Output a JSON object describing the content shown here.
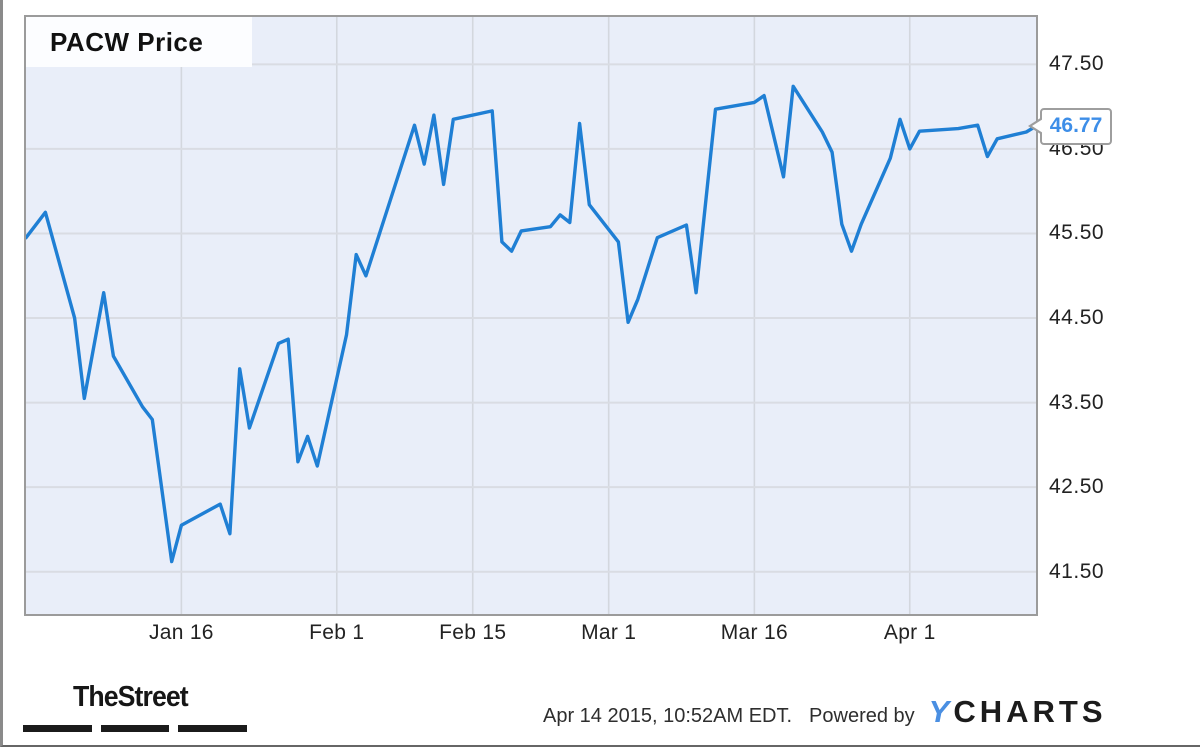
{
  "chart": {
    "title": "PACW Price",
    "last_price_label": "46.77"
  },
  "footer": {
    "brand": "TheStreet",
    "timestamp": "Apr 14 2015, 10:52AM EDT.",
    "powered_by": "Powered by",
    "ycharts_y": "Y",
    "ycharts_rest": "CHARTS"
  },
  "colors": {
    "line": "#1f7fd4",
    "plot_bg": "#e9eef9",
    "gridline_h": "#d9dce3",
    "gridline_v": "#d3d7de",
    "frame": "#9b9b9b",
    "callout_text": "#3d8ee8",
    "ycharts_blue": "#4a8fe2",
    "text": "#1f1f1f"
  },
  "chart_data": {
    "type": "line",
    "title": "PACW Price",
    "series_name": "PACW",
    "unit": "USD",
    "last_price": 46.77,
    "as_of": "Apr 14 2015, 10:52AM EDT.",
    "legend": "none",
    "grid": true,
    "y_axis": {
      "side": "right",
      "range": [
        41.0,
        48.06
      ],
      "ticks": [
        47.5,
        46.5,
        45.5,
        44.5,
        43.5,
        42.5,
        41.5
      ],
      "tick_labels": [
        "47.50",
        "46.50",
        "45.50",
        "44.50",
        "43.50",
        "42.50",
        "41.50"
      ]
    },
    "x_axis": {
      "ticks": [
        "Jan 16",
        "Feb 1",
        "Feb 15",
        "Mar 1",
        "Mar 16",
        "Apr 1"
      ]
    },
    "points": [
      [
        "Dec 31",
        45.45
      ],
      [
        "Jan 2",
        45.75
      ],
      [
        "Jan 5",
        44.5
      ],
      [
        "Jan 6",
        43.55
      ],
      [
        "Jan 8",
        44.8
      ],
      [
        "Jan 9",
        44.05
      ],
      [
        "Jan 12",
        43.45
      ],
      [
        "Jan 13",
        43.3
      ],
      [
        "Jan 15",
        41.62
      ],
      [
        "Jan 16",
        42.05
      ],
      [
        "Jan 20",
        42.3
      ],
      [
        "Jan 21",
        41.95
      ],
      [
        "Jan 22",
        43.9
      ],
      [
        "Jan 23",
        43.2
      ],
      [
        "Jan 26",
        44.2
      ],
      [
        "Jan 27",
        44.25
      ],
      [
        "Jan 28",
        42.8
      ],
      [
        "Jan 29",
        43.1
      ],
      [
        "Jan 30",
        42.75
      ],
      [
        "Feb 2",
        44.3
      ],
      [
        "Feb 3",
        45.25
      ],
      [
        "Feb 4",
        45.0
      ],
      [
        "Feb 9",
        46.78
      ],
      [
        "Feb 10",
        46.32
      ],
      [
        "Feb 11",
        46.9
      ],
      [
        "Feb 12",
        46.08
      ],
      [
        "Feb 13",
        46.85
      ],
      [
        "Feb 17",
        46.95
      ],
      [
        "Feb 18",
        45.4
      ],
      [
        "Feb 19",
        45.29
      ],
      [
        "Feb 20",
        45.53
      ],
      [
        "Feb 23",
        45.58
      ],
      [
        "Feb 24",
        45.72
      ],
      [
        "Feb 25",
        45.63
      ],
      [
        "Feb 26",
        46.8
      ],
      [
        "Feb 27",
        45.84
      ],
      [
        "Mar 2",
        45.4
      ],
      [
        "Mar 3",
        44.45
      ],
      [
        "Mar 4",
        44.72
      ],
      [
        "Mar 6",
        45.45
      ],
      [
        "Mar 9",
        45.6
      ],
      [
        "Mar 10",
        44.8
      ],
      [
        "Mar 12",
        46.97
      ],
      [
        "Mar 16",
        47.05
      ],
      [
        "Mar 17",
        47.13
      ],
      [
        "Mar 19",
        46.17
      ],
      [
        "Mar 20",
        47.24
      ],
      [
        "Mar 23",
        46.7
      ],
      [
        "Mar 24",
        46.46
      ],
      [
        "Mar 25",
        45.61
      ],
      [
        "Mar 26",
        45.29
      ],
      [
        "Mar 27",
        45.61
      ],
      [
        "Mar 30",
        46.39
      ],
      [
        "Mar 31",
        46.85
      ],
      [
        "Apr 1",
        46.5
      ],
      [
        "Apr 2",
        46.71
      ],
      [
        "Apr 6",
        46.74
      ],
      [
        "Apr 8",
        46.78
      ],
      [
        "Apr 9",
        46.41
      ],
      [
        "Apr 10",
        46.62
      ],
      [
        "Apr 13",
        46.7
      ],
      [
        "Apr 14",
        46.77
      ]
    ]
  }
}
